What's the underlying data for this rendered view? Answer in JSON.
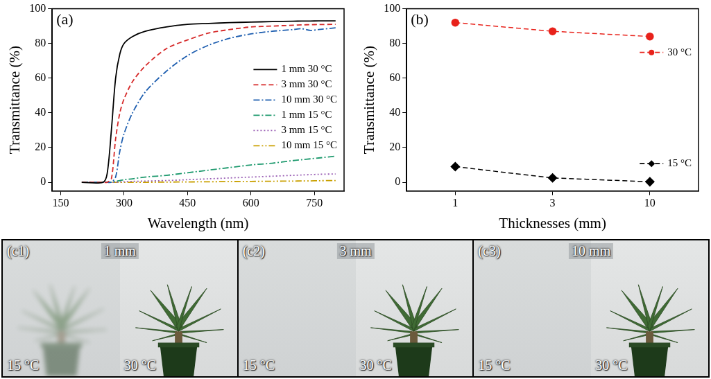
{
  "chart_data": [
    {
      "panel": "(a)",
      "type": "line",
      "x_label": "Wavelength (nm)",
      "y_label": "Transmittance (%)",
      "x": [
        200,
        250,
        260,
        270,
        280,
        290,
        300,
        320,
        350,
        400,
        450,
        500,
        550,
        600,
        650,
        700,
        720,
        740,
        760,
        800
      ],
      "series": [
        {
          "name": "1 mm 30 °C",
          "color": "#000000",
          "line_style": "solid",
          "values": [
            0,
            0,
            5,
            30,
            60,
            74,
            80,
            84,
            87,
            89.5,
            91,
            91.5,
            92,
            92.3,
            92.6,
            92.8,
            92.9,
            92.9,
            93,
            93
          ]
        },
        {
          "name": "3 mm 30 °C",
          "color": "#d62a2a",
          "line_style": "dashed",
          "values": [
            0,
            0,
            0,
            2,
            25,
            40,
            48,
            58,
            67,
            77,
            82,
            86,
            88,
            89.5,
            90,
            90.5,
            90.7,
            90.8,
            90.9,
            91
          ]
        },
        {
          "name": "10 mm 30 °C",
          "color": "#1f5fb0",
          "line_style": "dashdot",
          "values": [
            0,
            0,
            0,
            0,
            3,
            18,
            28,
            40,
            52,
            64,
            73,
            79,
            83,
            85.5,
            87,
            88,
            88.5,
            87.5,
            88,
            89
          ]
        },
        {
          "name": "1 mm 15 °C",
          "color": "#1e9a6e",
          "line_style": "dashdot",
          "values": [
            0,
            0,
            0,
            0,
            0.5,
            1,
            1.5,
            2,
            3,
            4,
            5.5,
            7,
            8.5,
            10,
            11,
            12.5,
            13,
            13.5,
            14,
            15
          ]
        },
        {
          "name": "3 mm 15 °C",
          "color": "#9a5fb5",
          "line_style": "dotted",
          "values": [
            0,
            0,
            0,
            0,
            0,
            0.2,
            0.3,
            0.5,
            0.7,
            1,
            1.5,
            2,
            2.5,
            3,
            3.5,
            4,
            4.2,
            4.4,
            4.6,
            4.8
          ]
        },
        {
          "name": "10 mm 15 °C",
          "color": "#c9a000",
          "line_style": "dashdotdot",
          "values": [
            0,
            0,
            0,
            0,
            0,
            0,
            0,
            0,
            0,
            0.1,
            0.2,
            0.3,
            0.4,
            0.5,
            0.6,
            0.7,
            0.75,
            0.8,
            0.9,
            1
          ]
        }
      ],
      "xlim": [
        130,
        820
      ],
      "xticks": [
        150,
        300,
        450,
        600,
        750
      ],
      "ylim": [
        -5,
        100
      ],
      "yticks": [
        0,
        20,
        40,
        60,
        80,
        100
      ],
      "grid": false,
      "legend": "right"
    },
    {
      "panel": "(b)",
      "type": "line",
      "x_label": "Thicknesses (mm)",
      "y_label": "Transmittance (%)",
      "categories": [
        "1",
        "3",
        "10"
      ],
      "series": [
        {
          "name": "30 °C",
          "color": "#e8221b",
          "marker": "circle",
          "line_style": "dashed",
          "values": [
            92,
            87,
            84
          ]
        },
        {
          "name": "15 °C",
          "color": "#000000",
          "marker": "diamond",
          "line_style": "dashed",
          "values": [
            9,
            2.5,
            0.3
          ]
        }
      ],
      "ylim": [
        -5,
        100
      ],
      "yticks": [
        0,
        20,
        40,
        60,
        80,
        100
      ],
      "grid": false,
      "legend": "right"
    }
  ],
  "photos": [
    {
      "label": "(c1)",
      "thickness": "1 mm",
      "left": "15 °C",
      "right": "30 °C"
    },
    {
      "label": "(c2)",
      "thickness": "3 mm",
      "left": "15 °C",
      "right": "30 °C"
    },
    {
      "label": "(c3)",
      "thickness": "10 mm",
      "left": "15 °C",
      "right": "30 °C"
    }
  ]
}
